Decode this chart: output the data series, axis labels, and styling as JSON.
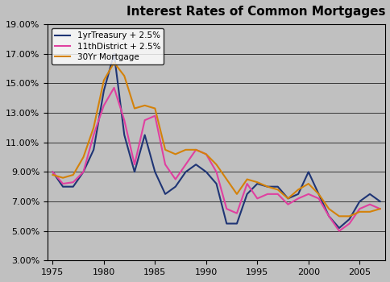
{
  "title": "Interest Rates of Common Mortgages",
  "background_color": "#c0c0c0",
  "xlim": [
    1974.5,
    2007.5
  ],
  "ylim": [
    0.03,
    0.19
  ],
  "yticks": [
    0.03,
    0.05,
    0.07,
    0.09,
    0.11,
    0.13,
    0.15,
    0.17,
    0.19
  ],
  "xticks": [
    1975,
    1980,
    1985,
    1990,
    1995,
    2000,
    2005
  ],
  "legend_labels": [
    "1yrTreasury + 2.5%",
    "11thDistrict + 2.5%",
    "30Yr Mortgage"
  ],
  "line_colors": [
    "#1f3575",
    "#e040a0",
    "#d4820a"
  ],
  "series1_x": [
    1975,
    1976,
    1977,
    1978,
    1979,
    1980,
    1981,
    1982,
    1983,
    1984,
    1985,
    1986,
    1987,
    1988,
    1989,
    1990,
    1991,
    1992,
    1993,
    1994,
    1995,
    1996,
    1997,
    1998,
    1999,
    2000,
    2001,
    2002,
    2003,
    2004,
    2005,
    2006,
    2007
  ],
  "series1_y": [
    0.09,
    0.08,
    0.08,
    0.09,
    0.105,
    0.145,
    0.17,
    0.115,
    0.09,
    0.115,
    0.09,
    0.075,
    0.08,
    0.09,
    0.095,
    0.09,
    0.082,
    0.055,
    0.055,
    0.075,
    0.082,
    0.08,
    0.08,
    0.072,
    0.075,
    0.09,
    0.075,
    0.06,
    0.052,
    0.058,
    0.07,
    0.075,
    0.07
  ],
  "series2_x": [
    1975,
    1976,
    1977,
    1978,
    1979,
    1980,
    1981,
    1982,
    1983,
    1984,
    1985,
    1986,
    1987,
    1988,
    1989,
    1990,
    1991,
    1992,
    1993,
    1994,
    1995,
    1996,
    1997,
    1998,
    1999,
    2000,
    2001,
    2002,
    2003,
    2004,
    2005,
    2006,
    2007
  ],
  "series2_y": [
    0.09,
    0.082,
    0.083,
    0.09,
    0.115,
    0.135,
    0.147,
    0.125,
    0.095,
    0.125,
    0.128,
    0.095,
    0.085,
    0.095,
    0.105,
    0.102,
    0.09,
    0.065,
    0.062,
    0.082,
    0.072,
    0.075,
    0.075,
    0.068,
    0.072,
    0.075,
    0.072,
    0.06,
    0.05,
    0.055,
    0.065,
    0.068,
    0.065
  ],
  "series3_x": [
    1975,
    1976,
    1977,
    1978,
    1979,
    1980,
    1981,
    1982,
    1983,
    1984,
    1985,
    1986,
    1987,
    1988,
    1989,
    1990,
    1991,
    1992,
    1993,
    1994,
    1995,
    1996,
    1997,
    1998,
    1999,
    2000,
    2001,
    2002,
    2003,
    2004,
    2005,
    2006,
    2007
  ],
  "series3_y": [
    0.088,
    0.086,
    0.088,
    0.1,
    0.12,
    0.152,
    0.164,
    0.155,
    0.133,
    0.135,
    0.133,
    0.105,
    0.102,
    0.105,
    0.105,
    0.102,
    0.095,
    0.085,
    0.075,
    0.085,
    0.083,
    0.08,
    0.078,
    0.072,
    0.078,
    0.082,
    0.075,
    0.065,
    0.06,
    0.06,
    0.063,
    0.063,
    0.065
  ]
}
